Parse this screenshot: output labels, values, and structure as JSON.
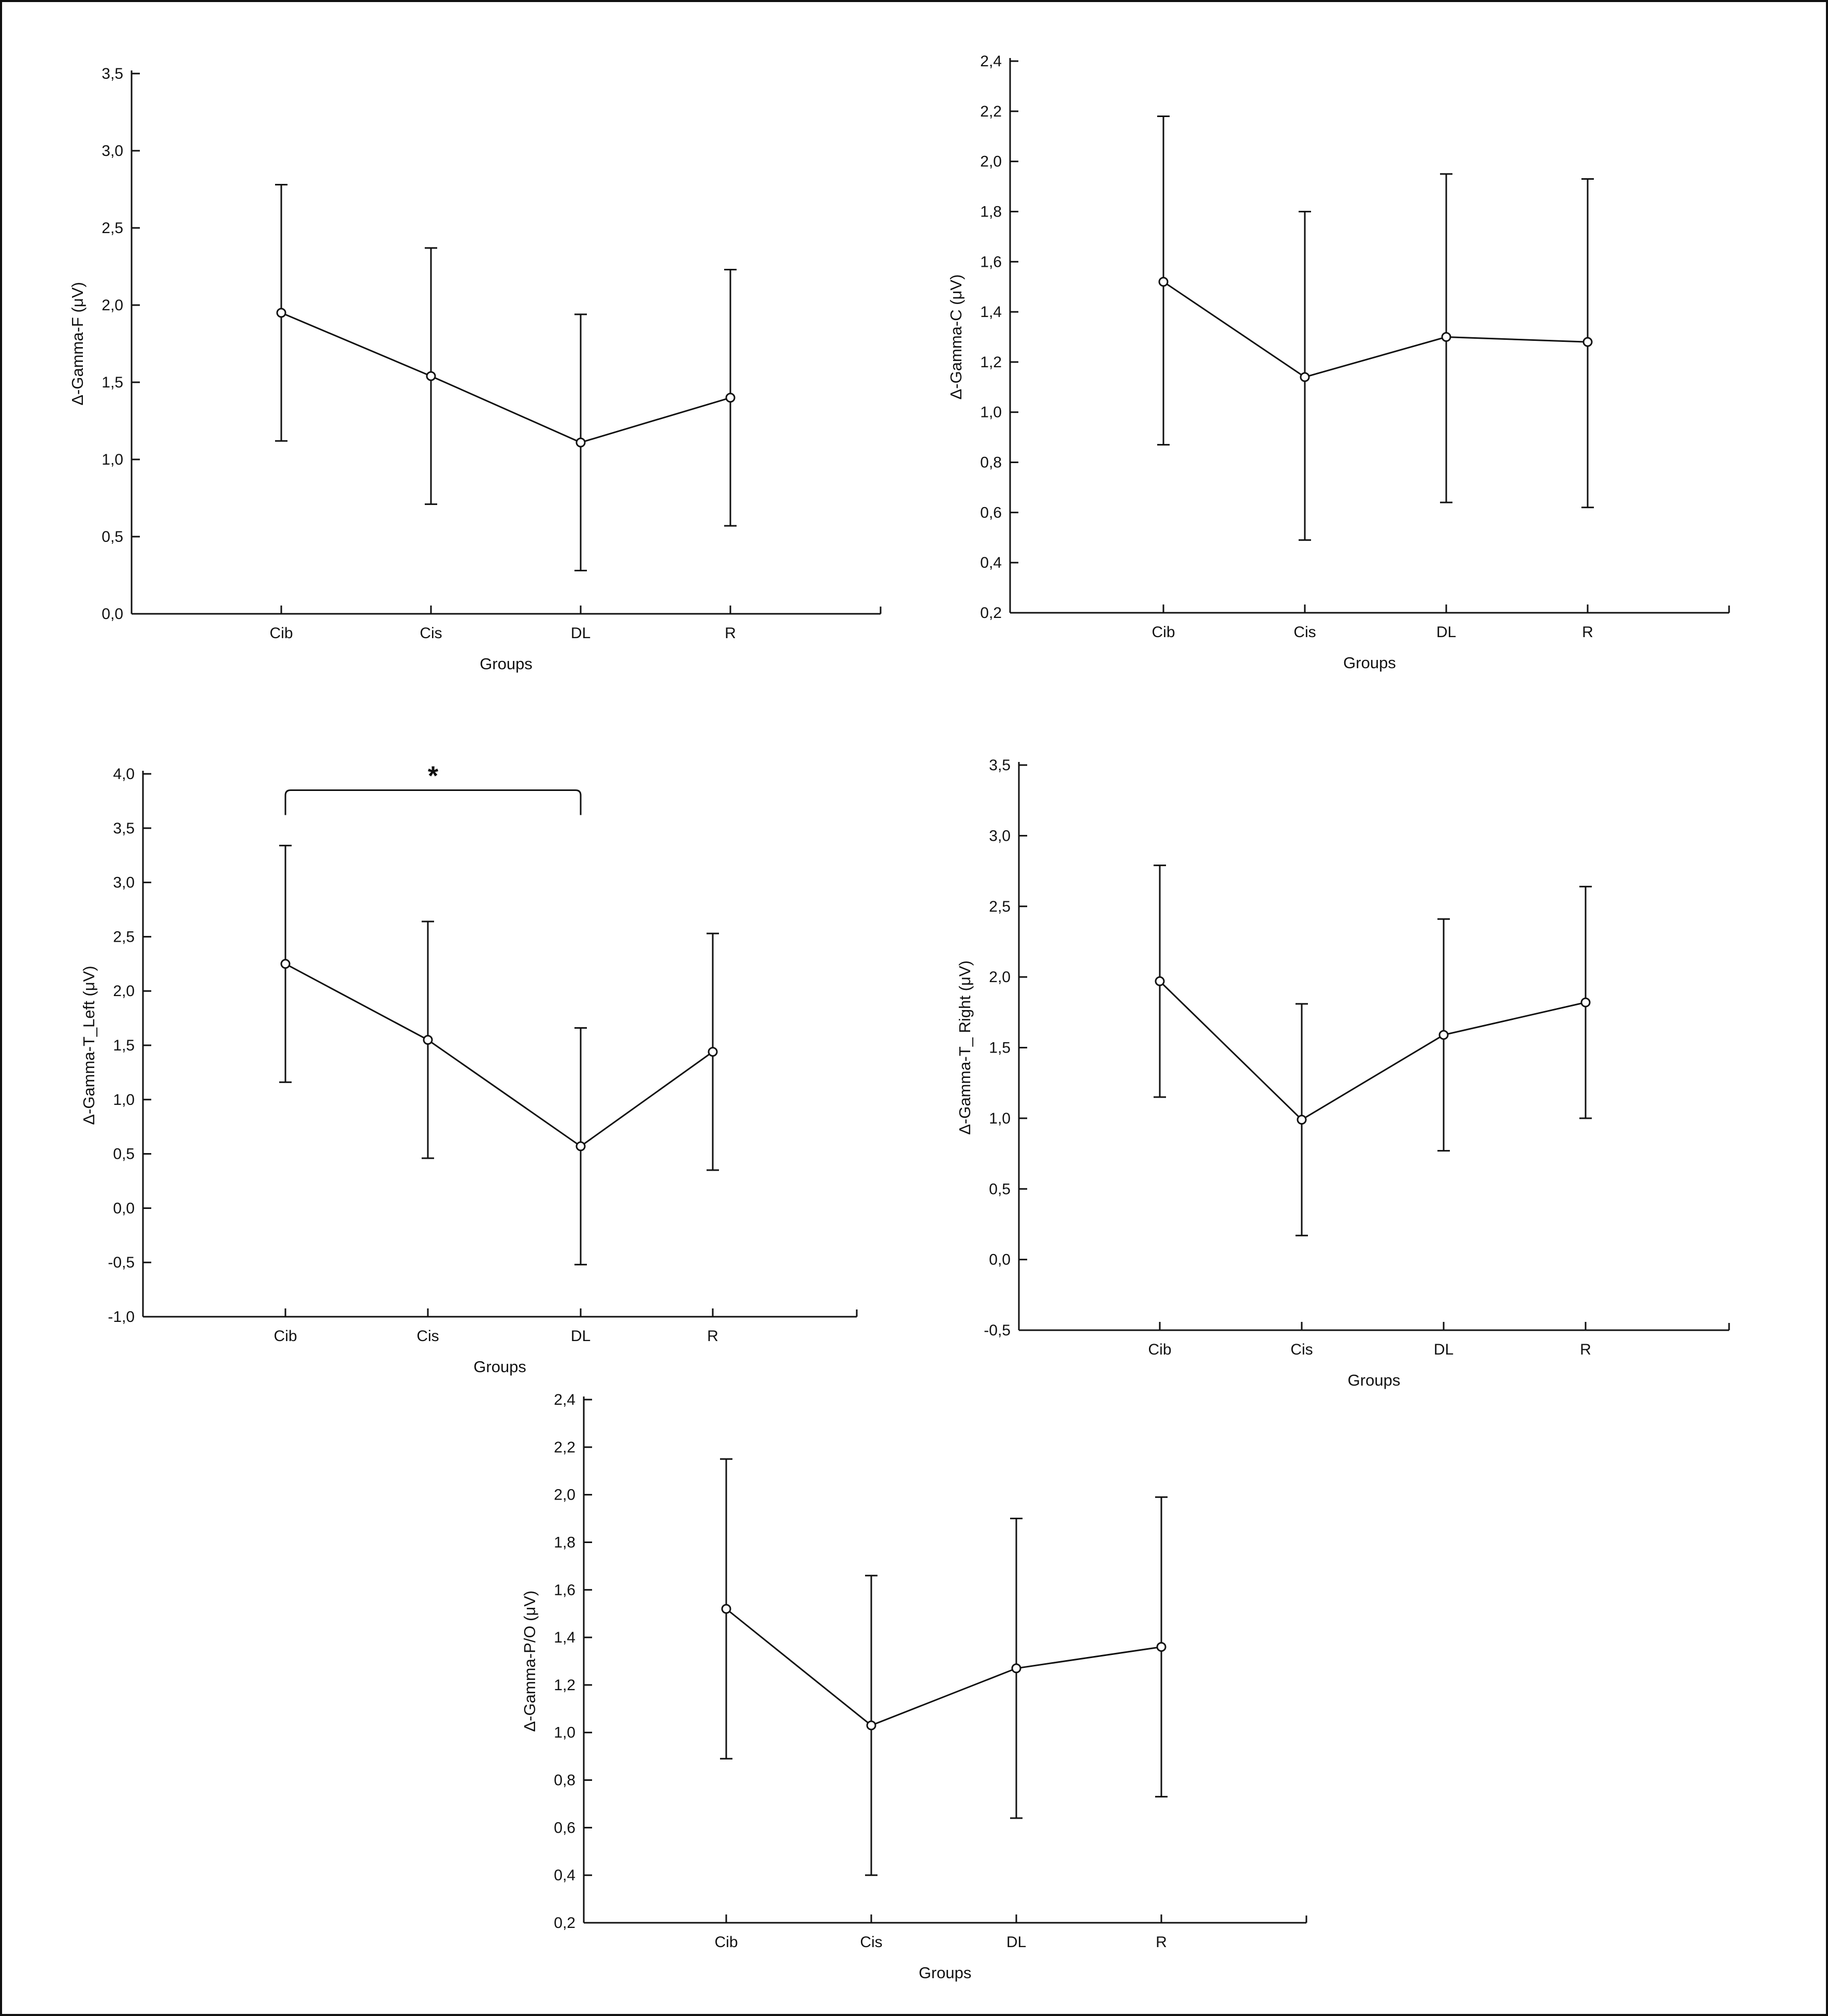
{
  "colors": {
    "ink": "#111111",
    "background": "#ffffff"
  },
  "chart_data": [
    {
      "type": "line",
      "categories": [
        "Cib",
        "Cis",
        "DL",
        "R"
      ],
      "series": [
        {
          "values": [
            1.95,
            1.54,
            1.11,
            1.4
          ],
          "error_low": [
            1.12,
            0.71,
            0.28,
            0.57
          ],
          "error_high": [
            2.78,
            2.37,
            1.94,
            2.23
          ]
        }
      ],
      "title": "",
      "xlabel": "Groups",
      "ylabel": "Δ-Gamma-F (μV)",
      "ylim": [
        0,
        3.5
      ],
      "ytick_labels": [
        "0,0",
        "0,5",
        "1,0",
        "1,5",
        "2,0",
        "2,5",
        "3,0",
        "3,5"
      ],
      "grid": false,
      "annotations": []
    },
    {
      "type": "line",
      "categories": [
        "Cib",
        "Cis",
        "DL",
        "R"
      ],
      "series": [
        {
          "values": [
            1.52,
            1.14,
            1.3,
            1.28
          ],
          "error_low": [
            0.87,
            0.49,
            0.64,
            0.62
          ],
          "error_high": [
            2.18,
            1.8,
            1.95,
            1.93
          ]
        }
      ],
      "title": "",
      "xlabel": "Groups",
      "ylabel": "Δ-Gamma-C (μV)",
      "ylim": [
        0.2,
        2.4
      ],
      "ytick_labels": [
        "0,2",
        "0,4",
        "0,6",
        "0,8",
        "1,0",
        "1,2",
        "1,4",
        "1,6",
        "1,8",
        "2,0",
        "2,2",
        "2,4"
      ],
      "grid": false,
      "annotations": []
    },
    {
      "type": "line",
      "categories": [
        "Cib",
        "Cis",
        "DL",
        "R"
      ],
      "series": [
        {
          "values": [
            2.25,
            1.55,
            0.57,
            1.44
          ],
          "error_low": [
            1.16,
            0.46,
            -0.52,
            0.35
          ],
          "error_high": [
            3.34,
            2.64,
            1.66,
            2.53
          ]
        }
      ],
      "title": "",
      "xlabel": "Groups",
      "ylabel": "Δ-Gamma-T_Left (μV)",
      "ylim": [
        -1.0,
        4.0
      ],
      "ytick_labels": [
        "-1,0",
        "-0,5",
        "0,0",
        "0,5",
        "1,0",
        "1,5",
        "2,0",
        "2,5",
        "3,0",
        "3,5",
        "4,0"
      ],
      "grid": false,
      "annotations": [
        {
          "type": "significance-bracket",
          "from": "Cib",
          "to": "DL",
          "y": 3.85,
          "label": "*"
        }
      ]
    },
    {
      "type": "line",
      "categories": [
        "Cib",
        "Cis",
        "DL",
        "R"
      ],
      "series": [
        {
          "values": [
            1.97,
            0.99,
            1.59,
            1.82
          ],
          "error_low": [
            1.15,
            0.17,
            0.77,
            1.0
          ],
          "error_high": [
            2.79,
            1.81,
            2.41,
            2.64
          ]
        }
      ],
      "title": "",
      "xlabel": "Groups",
      "ylabel": "Δ-Gamma-T_ Right (μV)",
      "ylim": [
        -0.5,
        3.5
      ],
      "ytick_labels": [
        "-0,5",
        "0,0",
        "0,5",
        "1,0",
        "1,5",
        "2,0",
        "2,5",
        "3,0",
        "3,5"
      ],
      "grid": false,
      "annotations": []
    },
    {
      "type": "line",
      "categories": [
        "Cib",
        "Cis",
        "DL",
        "R"
      ],
      "series": [
        {
          "values": [
            1.52,
            1.03,
            1.27,
            1.36
          ],
          "error_low": [
            0.89,
            0.4,
            0.64,
            0.73
          ],
          "error_high": [
            2.15,
            1.66,
            1.9,
            1.99
          ]
        }
      ],
      "title": "",
      "xlabel": "Groups",
      "ylabel": "Δ-Gamma-P/O (μV)",
      "ylim": [
        0.2,
        2.4
      ],
      "ytick_labels": [
        "0,2",
        "0,4",
        "0,6",
        "0,8",
        "1,0",
        "1,2",
        "1,4",
        "1,6",
        "1,8",
        "2,0",
        "2,2",
        "2,4"
      ],
      "grid": false,
      "annotations": []
    }
  ]
}
